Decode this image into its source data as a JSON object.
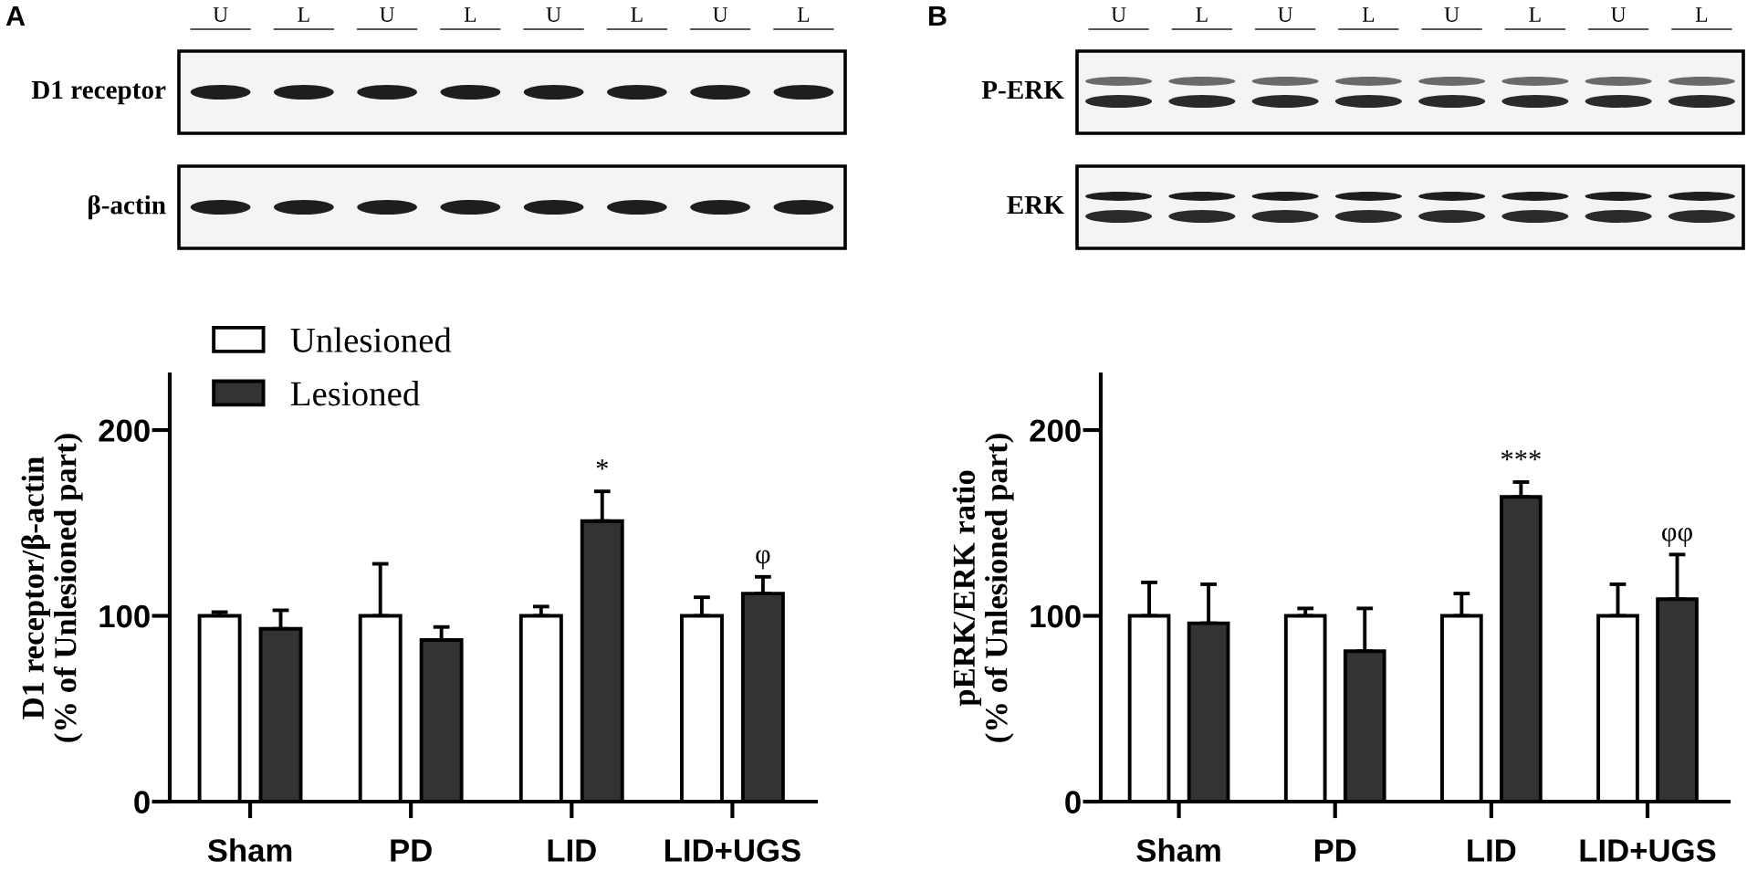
{
  "chart_data": [
    {
      "type": "other",
      "title": "A",
      "categories": [
        "U",
        "L",
        "U",
        "L",
        "U",
        "L",
        "U",
        "L"
      ],
      "y_categories": [
        "D1 receptor",
        "β-actin"
      ]
    },
    {
      "type": "bar",
      "ylabel": "D1 receptor/β-actin\n(% of Unlesioned part)",
      "categories": [
        "Sham",
        "PD",
        "LID",
        "LID+UGS"
      ],
      "series": [
        {
          "name": "Unlesioned",
          "color": "#ffffff",
          "values": [
            100,
            100,
            100,
            100
          ],
          "errors": [
            [
              100,
              102
            ],
            [
              100,
              128
            ],
            [
              100,
              105
            ],
            [
              100,
              110
            ]
          ]
        },
        {
          "name": "Lesioned",
          "color": "#333333",
          "values": [
            93,
            87,
            151,
            112
          ],
          "errors": [
            [
              93,
              103
            ],
            [
              87,
              94
            ],
            [
              151,
              167
            ],
            [
              112,
              121
            ]
          ]
        }
      ],
      "ylim": [
        0,
        230
      ],
      "yticks": [
        0,
        100,
        200
      ],
      "legend": "top left",
      "annotations": [
        "*",
        "φ"
      ]
    },
    {
      "type": "other",
      "title": "B",
      "categories": [
        "U",
        "L",
        "U",
        "L",
        "U",
        "L",
        "U",
        "L"
      ],
      "y_categories": [
        "P-ERK",
        "ERK"
      ]
    },
    {
      "type": "bar",
      "ylabel": "pERK/ERK ratio\n(% of Unlesioned part)",
      "categories": [
        "Sham",
        "PD",
        "LID",
        "LID+UGS"
      ],
      "series": [
        {
          "color": "#ffffff",
          "values": [
            100,
            100,
            100,
            100
          ],
          "errors": [
            [
              100,
              118
            ],
            [
              100,
              104
            ],
            [
              100,
              112
            ],
            [
              100,
              117
            ]
          ]
        },
        {
          "color": "#333333",
          "values": [
            96,
            81,
            164,
            109
          ],
          "errors": [
            [
              96,
              117
            ],
            [
              81,
              104
            ],
            [
              164,
              172
            ],
            [
              109,
              133
            ]
          ]
        }
      ],
      "ylim": [
        0,
        230
      ],
      "yticks": [
        0,
        100,
        200
      ],
      "annotations": [
        "***",
        "φφ"
      ]
    }
  ]
}
